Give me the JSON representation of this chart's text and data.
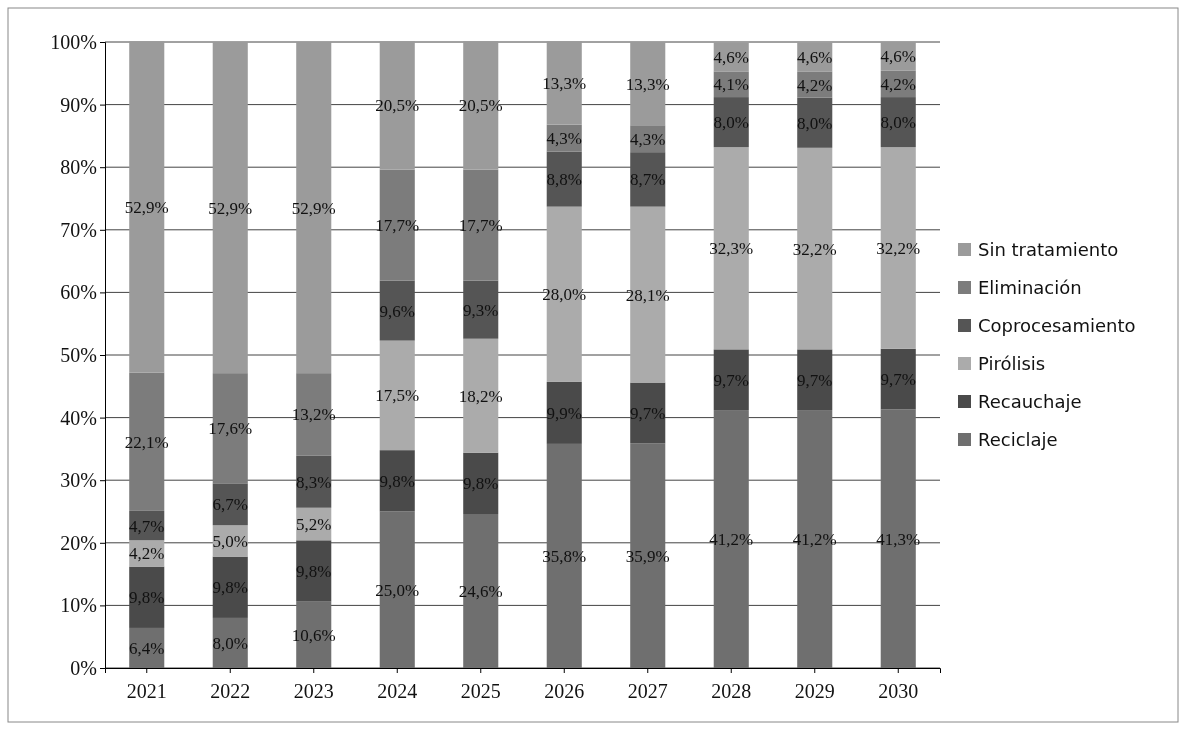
{
  "chart_data": {
    "type": "bar",
    "stacked": true,
    "grid": "y",
    "legend": "right",
    "categories": [
      "2021",
      "2022",
      "2023",
      "2024",
      "2025",
      "2026",
      "2027",
      "2028",
      "2029",
      "2030"
    ],
    "ylim": [
      0,
      100
    ],
    "yticks": [
      {
        "value": 0,
        "label": "0%"
      },
      {
        "value": 10,
        "label": "10%"
      },
      {
        "value": 20,
        "label": "20%"
      },
      {
        "value": 30,
        "label": "30%"
      },
      {
        "value": 40,
        "label": "40%"
      },
      {
        "value": 50,
        "label": "50%"
      },
      {
        "value": 60,
        "label": "60%"
      },
      {
        "value": 70,
        "label": "70%"
      },
      {
        "value": 80,
        "label": "80%"
      },
      {
        "value": 90,
        "label": "90%"
      },
      {
        "value": 100,
        "label": "100%"
      }
    ],
    "series": [
      {
        "name": "Reciclaje",
        "color": "#6f6f6f",
        "values": [
          6.4,
          8.0,
          10.6,
          25.0,
          24.6,
          35.8,
          35.9,
          41.2,
          41.2,
          41.3
        ],
        "value_labels": [
          "6,4%",
          "8,0%",
          "10,6%",
          "25,0%",
          "24,6%",
          "35,8%",
          "35,9%",
          "41,2%",
          "41,2%",
          "41,3%"
        ]
      },
      {
        "name": "Recauchaje",
        "color": "#4a4a4a",
        "values": [
          9.8,
          9.8,
          9.8,
          9.8,
          9.8,
          9.9,
          9.7,
          9.7,
          9.7,
          9.7
        ],
        "value_labels": [
          "9,8%",
          "9,8%",
          "9,8%",
          "9,8%",
          "9,8%",
          "9,9%",
          "9,7%",
          "9,7%",
          "9,7%",
          "9,7%"
        ]
      },
      {
        "name": "Pirólisis",
        "color": "#ababab",
        "values": [
          4.2,
          5.0,
          5.2,
          17.5,
          18.2,
          28.0,
          28.1,
          32.3,
          32.2,
          32.2
        ],
        "value_labels": [
          "4,2%",
          "5,0%",
          "5,2%",
          "17,5%",
          "18,2%",
          "28,0%",
          "28,1%",
          "32,3%",
          "32,2%",
          "32,2%"
        ]
      },
      {
        "name": "Coprocesamiento",
        "color": "#555555",
        "values": [
          4.7,
          6.7,
          8.3,
          9.6,
          9.3,
          8.8,
          8.7,
          8.0,
          8.0,
          8.0
        ],
        "value_labels": [
          "4,7%",
          "6,7%",
          "8,3%",
          "9,6%",
          "9,3%",
          "8,8%",
          "8,7%",
          "8,0%",
          "8,0%",
          "8,0%"
        ]
      },
      {
        "name": "Eliminación",
        "color": "#7c7c7c",
        "values": [
          22.1,
          17.6,
          13.2,
          17.7,
          17.7,
          4.3,
          4.3,
          4.1,
          4.2,
          4.2
        ],
        "value_labels": [
          "22,1%",
          "17,6%",
          "13,2%",
          "17,7%",
          "17,7%",
          "4,3%",
          "4,3%",
          "4,1%",
          "4,2%",
          "4,2%"
        ]
      },
      {
        "name": "Sin tratamiento",
        "color": "#9b9b9b",
        "values": [
          52.9,
          52.9,
          52.9,
          20.5,
          20.5,
          13.3,
          13.3,
          4.6,
          4.6,
          4.6
        ],
        "value_labels": [
          "52,9%",
          "52,9%",
          "52,9%",
          "20,5%",
          "20,5%",
          "13,3%",
          "13,3%",
          "4,6%",
          "4,6%",
          "4,6%"
        ]
      }
    ]
  }
}
